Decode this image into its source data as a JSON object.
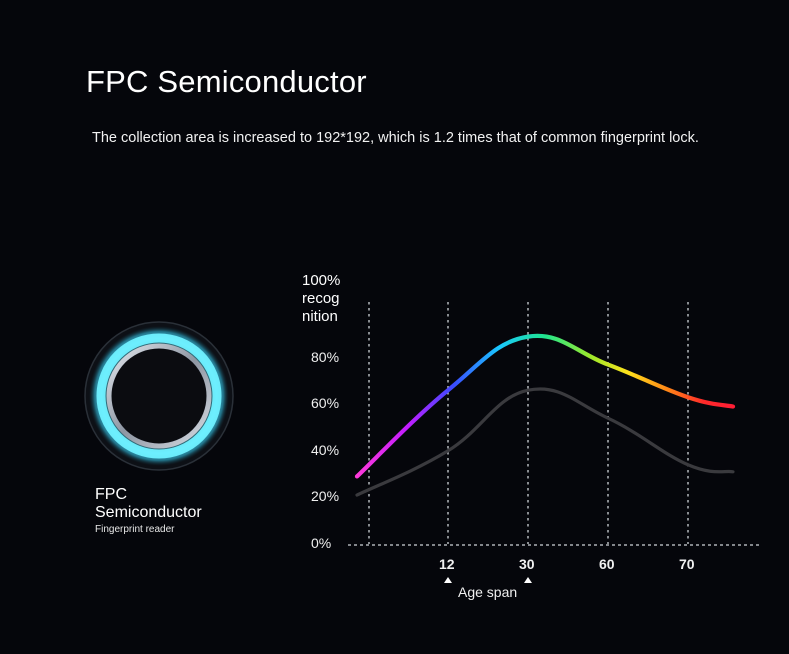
{
  "header": {
    "title": "FPC Semiconductor",
    "description": "The collection area is increased to 192*192, which is 1.2 times that of common fingerprint lock."
  },
  "reader": {
    "title": "FPC Semiconductor",
    "subtitle": "Fingerprint reader",
    "icon": "fingerprint-sensor-icon",
    "ring_color": "#5fe6ff"
  },
  "chart_data": {
    "type": "line",
    "ylabel": "100% recog nition",
    "xlabel": "Age span",
    "yticks": [
      "0%",
      "20%",
      "40%",
      "60%",
      "80%"
    ],
    "ylim": [
      0,
      100
    ],
    "x_categories": [
      "12",
      "30",
      "60",
      "70"
    ],
    "x_markers": [
      "12",
      "30"
    ],
    "grid": "vertical dotted",
    "series": [
      {
        "color": "gradient-rainbow",
        "points": [
          [
            "start",
            29
          ],
          [
            "12",
            66
          ],
          [
            "30",
            89
          ],
          [
            "60",
            77
          ],
          [
            "70",
            63
          ],
          [
            "end",
            59
          ]
        ]
      },
      {
        "color": "#3a3a3e",
        "points": [
          [
            "start",
            21
          ],
          [
            "12",
            40
          ],
          [
            "30",
            66
          ],
          [
            "60",
            54
          ],
          [
            "70",
            34
          ],
          [
            "end",
            31
          ]
        ]
      }
    ]
  }
}
